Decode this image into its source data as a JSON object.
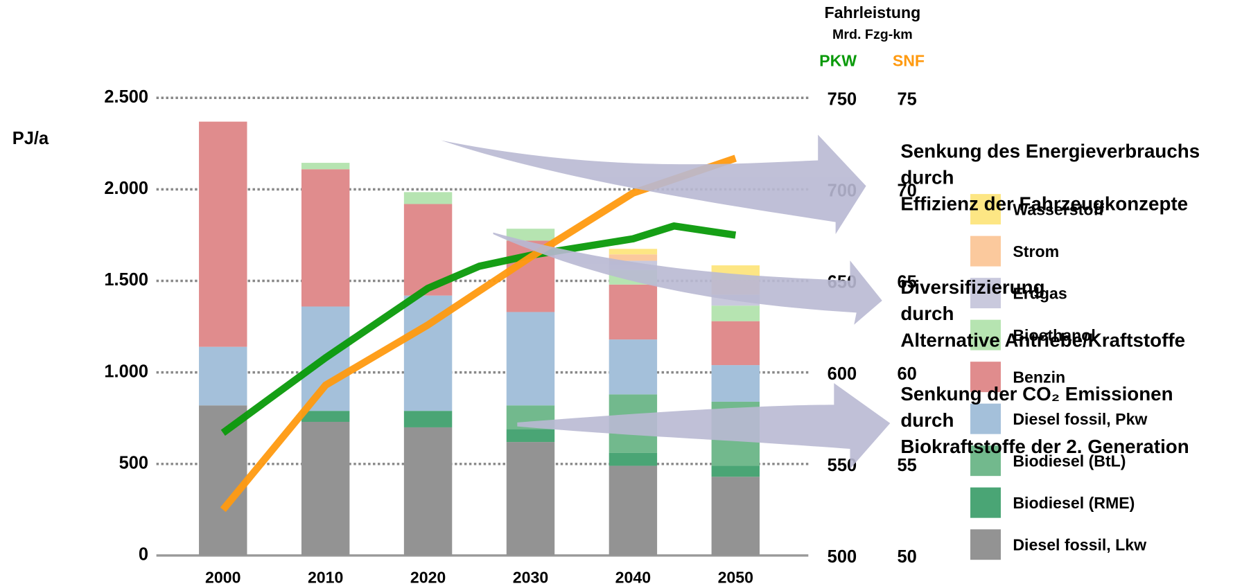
{
  "chart_data": {
    "type": "bar",
    "stacked": true,
    "header": {
      "title": "Fahrleistung",
      "subtitle": "Mrd. Fzg-km"
    },
    "y_label": "PJ/a",
    "categories": [
      "2000",
      "2010",
      "2020",
      "2030",
      "2040",
      "2050"
    ],
    "series": [
      {
        "name": "Diesel fossil, Lkw",
        "color": "#939393",
        "values": [
          820,
          730,
          700,
          620,
          490,
          430
        ]
      },
      {
        "name": "Biodiesel (RME)",
        "color": "#4aa575",
        "values": [
          0,
          60,
          90,
          70,
          70,
          60
        ]
      },
      {
        "name": "Biodiesel (BtL)",
        "color": "#72b98d",
        "values": [
          0,
          0,
          0,
          130,
          320,
          350
        ]
      },
      {
        "name": "Diesel fossil, Pkw",
        "color": "#a4c0da",
        "values": [
          320,
          570,
          630,
          510,
          300,
          200
        ]
      },
      {
        "name": "Benzin",
        "color": "#e08c8d",
        "values": [
          1230,
          750,
          500,
          390,
          300,
          240
        ]
      },
      {
        "name": "Bioethanol",
        "color": "#b6e4b1",
        "values": [
          0,
          35,
          65,
          65,
          80,
          85
        ]
      },
      {
        "name": "Erdgas",
        "color": "#c9c9dd",
        "values": [
          0,
          0,
          0,
          0,
          50,
          60
        ]
      },
      {
        "name": "Strom",
        "color": "#fbc99d",
        "values": [
          0,
          0,
          0,
          0,
          35,
          80
        ]
      },
      {
        "name": "Wasserstoff",
        "color": "#fde684",
        "values": [
          0,
          0,
          0,
          0,
          30,
          80
        ]
      }
    ],
    "ylim": [
      0,
      2500
    ],
    "yticks": [
      0,
      500,
      {
        "value": 1000,
        "label": "1.000"
      },
      {
        "value": 1500,
        "label": "1.500"
      },
      {
        "value": 2000,
        "label": "2.000"
      },
      {
        "value": 2500,
        "label": "2.500"
      }
    ],
    "xlim": [
      1993.5,
      2057.1
    ],
    "grid": true,
    "y2lim": [
      500,
      750
    ],
    "y2ticks": [
      500,
      550,
      600,
      650,
      700,
      750
    ],
    "y3lim": [
      50,
      75
    ],
    "y3ticks": [
      50,
      55,
      60,
      65,
      70,
      75
    ],
    "lines": [
      {
        "name": "PKW",
        "color": "#0a9a0a",
        "axis": "y2",
        "x": [
          2000,
          2010,
          2020,
          2025,
          2030,
          2040,
          2044,
          2050
        ],
        "values": [
          567,
          608,
          646,
          658,
          664,
          673,
          680,
          675
        ]
      },
      {
        "name": "SNF",
        "color": "#ff9a10",
        "axis": "y3",
        "x": [
          2000,
          2010,
          2020,
          2030,
          2040,
          2050
        ],
        "values": [
          52.5,
          59.3,
          62.6,
          66.3,
          69.8,
          71.7
        ]
      }
    ],
    "annotations": [
      [
        "Senkung des Energieverbrauchs",
        "durch",
        "Effizienz der Fahrzeugkonzepte"
      ],
      [
        "Diversifizierung",
        "durch",
        "Alternative Antriebe/Kraftstoffe"
      ],
      [
        "Senkung der CO₂ Emissionen",
        "durch",
        "Biokraftstoffe der 2. Generation"
      ]
    ]
  }
}
